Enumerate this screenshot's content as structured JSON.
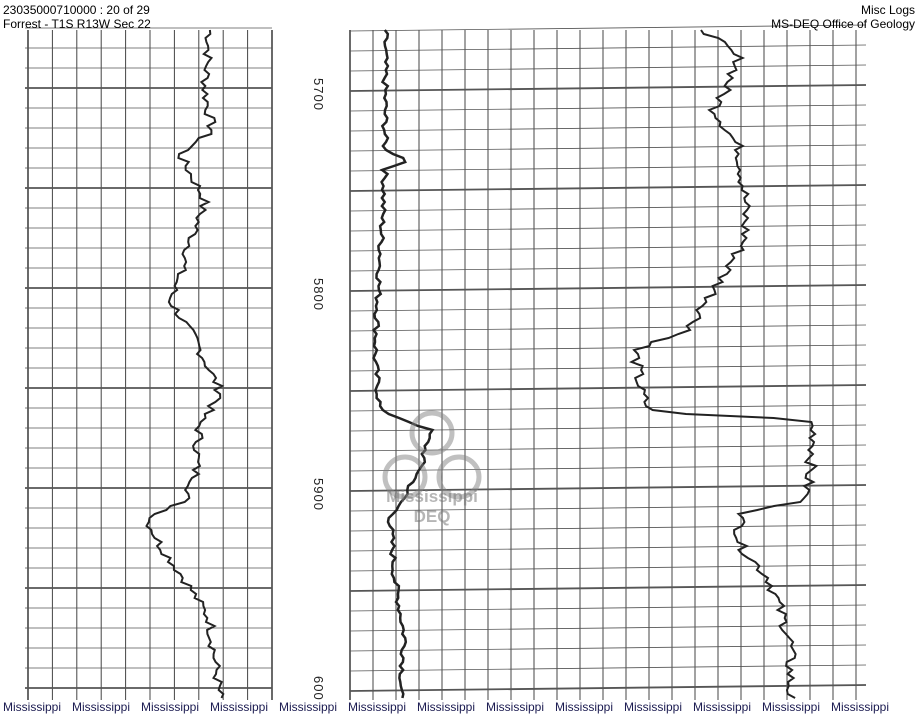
{
  "header": {
    "record": "23035000710000 : 20 of 29",
    "location": "Forrest - T1S R13W Sec 22",
    "category": "Misc Logs",
    "agency": "MS-DEQ Office of Geology"
  },
  "depth_labels": [
    "5700",
    "5800",
    "5900",
    "600"
  ],
  "watermark": {
    "line1": "Mississippi",
    "line2": "DEQ"
  },
  "footer": [
    "Mississippi",
    "Mississippi",
    "Mississippi",
    "Mississippi",
    "Mississippi",
    "Mississippi",
    "Mississippi",
    "Mississippi",
    "Mississippi",
    "Mississippi",
    "Mississippi",
    "Mississippi",
    "Mississippi"
  ]
}
